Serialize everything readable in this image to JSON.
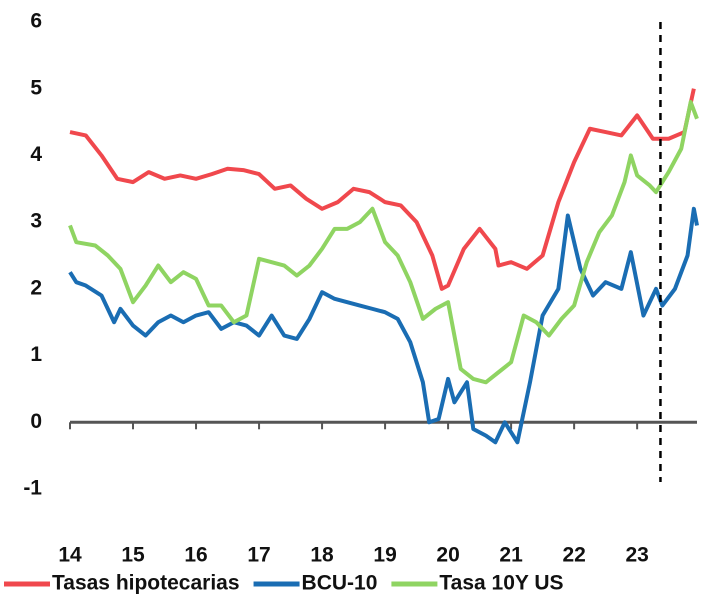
{
  "chart_data": {
    "type": "line",
    "xlim": [
      14,
      23.95
    ],
    "xticks": [
      14,
      15,
      16,
      17,
      18,
      19,
      20,
      21,
      22,
      23
    ],
    "ylim": [
      -1,
      6
    ],
    "yticks": [
      -1,
      0,
      1,
      2,
      3,
      4,
      5,
      6
    ],
    "vertical_line_x": 23.37,
    "legend": "bottom",
    "series": [
      {
        "name": "Tasas hipotecarias",
        "color": "#f0484d",
        "x": [
          14.0,
          14.25,
          14.5,
          14.75,
          15.0,
          15.25,
          15.5,
          15.75,
          16.0,
          16.25,
          16.5,
          16.75,
          17.0,
          17.25,
          17.5,
          17.75,
          18.0,
          18.25,
          18.5,
          18.75,
          19.0,
          19.25,
          19.5,
          19.75,
          19.9,
          20.0,
          20.25,
          20.5,
          20.75,
          20.8,
          21.0,
          21.25,
          21.5,
          21.75,
          22.0,
          22.25,
          22.5,
          22.75,
          23.0,
          23.25,
          23.5,
          23.75,
          23.9
        ],
        "values": [
          4.35,
          4.3,
          4.0,
          3.65,
          3.6,
          3.75,
          3.65,
          3.7,
          3.65,
          3.72,
          3.8,
          3.78,
          3.72,
          3.5,
          3.55,
          3.35,
          3.2,
          3.3,
          3.5,
          3.45,
          3.3,
          3.25,
          3.0,
          2.5,
          2.0,
          2.05,
          2.6,
          2.9,
          2.6,
          2.35,
          2.4,
          2.3,
          2.5,
          3.3,
          3.9,
          4.4,
          4.35,
          4.3,
          4.6,
          4.25,
          4.25,
          4.35,
          5.0
        ]
      },
      {
        "name": "BCU-10",
        "color": "#1a6db3",
        "x": [
          14.0,
          14.1,
          14.25,
          14.5,
          14.7,
          14.8,
          15.0,
          15.2,
          15.4,
          15.6,
          15.8,
          16.0,
          16.2,
          16.4,
          16.6,
          16.8,
          17.0,
          17.2,
          17.4,
          17.6,
          17.8,
          18.0,
          18.2,
          18.4,
          18.6,
          18.8,
          19.0,
          19.2,
          19.4,
          19.6,
          19.7,
          19.85,
          20.0,
          20.1,
          20.3,
          20.4,
          20.6,
          20.75,
          20.9,
          21.1,
          21.3,
          21.5,
          21.75,
          21.9,
          22.1,
          22.3,
          22.5,
          22.75,
          22.9,
          23.1,
          23.3,
          23.4,
          23.6,
          23.8,
          23.9,
          23.95
        ],
        "values": [
          2.25,
          2.1,
          2.05,
          1.9,
          1.5,
          1.7,
          1.45,
          1.3,
          1.5,
          1.6,
          1.5,
          1.6,
          1.65,
          1.4,
          1.5,
          1.45,
          1.3,
          1.6,
          1.3,
          1.25,
          1.55,
          1.95,
          1.85,
          1.8,
          1.75,
          1.7,
          1.65,
          1.55,
          1.2,
          0.6,
          0.0,
          0.05,
          0.65,
          0.3,
          0.6,
          -0.1,
          -0.2,
          -0.3,
          0.0,
          -0.3,
          0.6,
          1.6,
          2.0,
          3.1,
          2.3,
          1.9,
          2.1,
          2.0,
          2.55,
          1.6,
          2.0,
          1.75,
          2.0,
          2.5,
          3.2,
          2.95
        ]
      },
      {
        "name": "Tasa 10Y US",
        "color": "#8fd462",
        "x": [
          14.0,
          14.1,
          14.4,
          14.6,
          14.8,
          15.0,
          15.2,
          15.4,
          15.6,
          15.8,
          16.0,
          16.2,
          16.4,
          16.6,
          16.8,
          17.0,
          17.2,
          17.4,
          17.6,
          17.8,
          18.0,
          18.2,
          18.4,
          18.6,
          18.8,
          19.0,
          19.2,
          19.4,
          19.6,
          19.8,
          20.0,
          20.2,
          20.4,
          20.6,
          20.8,
          21.0,
          21.2,
          21.4,
          21.6,
          21.8,
          22.0,
          22.2,
          22.4,
          22.6,
          22.8,
          22.9,
          23.0,
          23.2,
          23.3,
          23.5,
          23.7,
          23.85,
          23.95
        ],
        "values": [
          2.95,
          2.7,
          2.65,
          2.5,
          2.3,
          1.8,
          2.05,
          2.35,
          2.1,
          2.25,
          2.15,
          1.75,
          1.75,
          1.5,
          1.6,
          2.45,
          2.4,
          2.35,
          2.2,
          2.35,
          2.6,
          2.9,
          2.9,
          3.0,
          3.2,
          2.7,
          2.5,
          2.1,
          1.55,
          1.7,
          1.8,
          0.8,
          0.65,
          0.6,
          0.75,
          0.9,
          1.6,
          1.5,
          1.3,
          1.55,
          1.75,
          2.4,
          2.85,
          3.1,
          3.6,
          4.0,
          3.7,
          3.55,
          3.45,
          3.75,
          4.1,
          4.8,
          4.55
        ]
      }
    ]
  }
}
